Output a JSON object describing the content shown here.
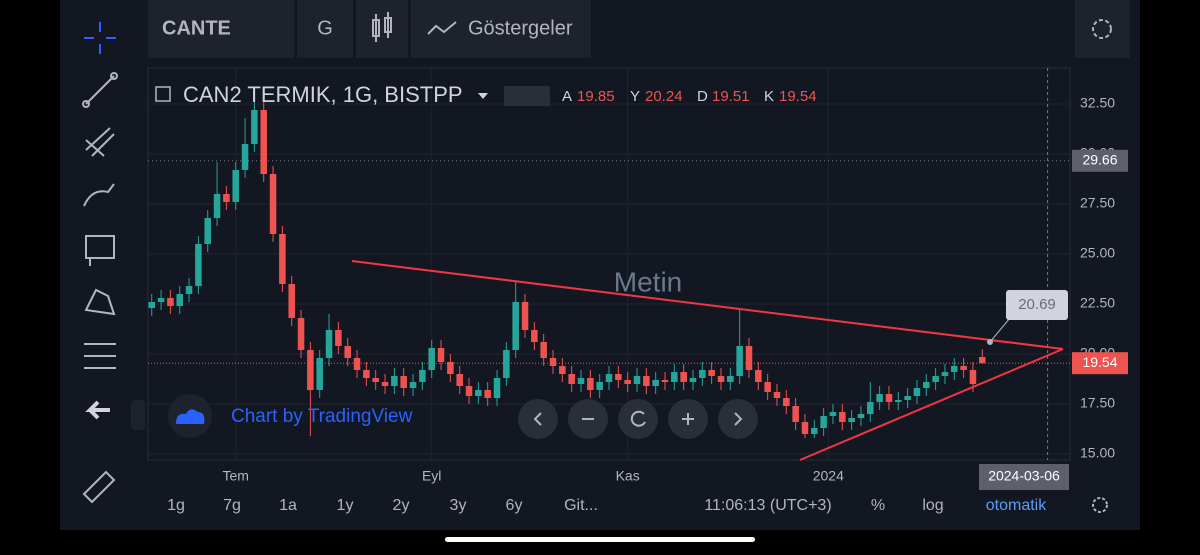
{
  "top_bar": {
    "symbol": "CANTE",
    "interval": "G",
    "indicators": "Göstergeler"
  },
  "chart_data": {
    "type": "candlestick",
    "title": "CAN2 TERMIK, 1G, BISTPP",
    "ohlc_labels": [
      "A",
      "Y",
      "D",
      "K"
    ],
    "open": [
      22.3,
      22.6,
      22.8,
      22.4,
      23.0,
      23.4,
      25.5,
      26.8,
      28.0,
      27.6,
      29.2,
      30.5,
      32.2,
      29.0,
      26.0,
      23.5,
      21.8,
      20.2,
      18.2,
      19.8,
      21.2,
      20.4,
      19.8,
      19.2,
      18.8,
      18.6,
      18.4,
      18.9,
      18.3,
      18.6,
      19.2,
      20.3,
      19.6,
      19.0,
      18.4,
      17.9,
      18.2,
      17.8,
      18.8,
      20.2,
      22.6,
      21.2,
      20.6,
      19.8,
      19.4,
      19.0,
      18.5,
      18.8,
      18.2,
      18.6,
      19.0,
      18.7,
      18.5,
      18.9,
      18.4,
      18.7,
      18.6,
      19.1,
      18.6,
      18.8,
      19.2,
      18.9,
      18.6,
      18.9,
      20.4,
      19.2,
      18.6,
      18.1,
      17.8,
      17.4,
      16.6,
      16.0,
      16.3,
      16.9,
      17.1,
      16.6,
      16.8,
      17.0,
      17.6,
      18.0,
      17.6,
      17.7,
      17.9,
      18.3,
      18.6,
      18.9,
      19.1,
      19.4,
      19.2,
      19.85
    ],
    "high": [
      23.0,
      23.2,
      23.2,
      23.4,
      23.8,
      25.9,
      27.2,
      29.6,
      28.4,
      29.6,
      31.8,
      33.0,
      32.8,
      29.4,
      26.4,
      23.9,
      22.2,
      20.6,
      20.2,
      22.0,
      21.6,
      20.8,
      20.2,
      19.6,
      19.2,
      19.0,
      19.3,
      19.3,
      19.0,
      19.6,
      20.7,
      20.7,
      20.0,
      19.4,
      18.8,
      18.6,
      18.6,
      19.2,
      20.6,
      23.6,
      23.0,
      21.6,
      21.0,
      20.2,
      19.8,
      19.4,
      19.2,
      19.2,
      19.0,
      19.4,
      19.4,
      19.1,
      19.3,
      19.3,
      19.1,
      19.1,
      19.5,
      19.5,
      19.2,
      19.6,
      19.6,
      19.3,
      19.3,
      22.2,
      20.8,
      19.6,
      19.0,
      18.5,
      18.2,
      17.8,
      17.0,
      16.7,
      17.3,
      17.5,
      17.5,
      17.2,
      17.4,
      18.6,
      18.4,
      18.4,
      18.1,
      18.3,
      18.7,
      19.0,
      19.3,
      19.5,
      19.8,
      19.8,
      19.6,
      20.24
    ],
    "low": [
      21.9,
      22.2,
      22.0,
      22.0,
      22.6,
      23.0,
      25.1,
      26.4,
      27.2,
      27.2,
      28.8,
      30.1,
      28.6,
      25.6,
      23.1,
      21.4,
      19.8,
      15.9,
      17.8,
      19.4,
      20.0,
      19.4,
      18.8,
      18.4,
      18.2,
      18.0,
      18.0,
      17.9,
      17.9,
      18.2,
      18.8,
      19.2,
      18.6,
      18.0,
      17.5,
      17.5,
      17.4,
      17.4,
      18.4,
      19.8,
      20.8,
      20.2,
      19.4,
      19.0,
      18.6,
      18.1,
      18.1,
      17.8,
      17.8,
      18.2,
      18.3,
      18.1,
      18.1,
      18.0,
      18.0,
      18.2,
      18.2,
      18.2,
      18.2,
      18.4,
      18.5,
      18.2,
      18.2,
      18.5,
      18.8,
      18.2,
      17.7,
      17.4,
      17.0,
      16.2,
      15.8,
      15.8,
      15.9,
      16.5,
      16.2,
      16.2,
      16.4,
      16.6,
      17.2,
      17.2,
      17.2,
      17.3,
      17.5,
      17.9,
      18.2,
      18.5,
      18.7,
      18.8,
      18.1,
      19.51
    ],
    "close": [
      22.6,
      22.8,
      22.4,
      23.0,
      23.4,
      25.5,
      26.8,
      28.0,
      27.6,
      29.2,
      30.5,
      32.2,
      29.0,
      26.0,
      23.5,
      21.8,
      20.2,
      18.2,
      19.8,
      21.2,
      20.4,
      19.8,
      19.2,
      18.8,
      18.6,
      18.4,
      18.9,
      18.3,
      18.6,
      19.2,
      20.3,
      19.6,
      19.0,
      18.4,
      17.9,
      18.2,
      17.8,
      18.8,
      20.2,
      22.6,
      21.2,
      20.6,
      19.8,
      19.4,
      19.0,
      18.5,
      18.8,
      18.2,
      18.6,
      19.0,
      18.7,
      18.5,
      18.9,
      18.4,
      18.7,
      18.6,
      19.1,
      18.6,
      18.8,
      19.2,
      18.9,
      18.6,
      18.9,
      20.4,
      19.2,
      18.6,
      18.1,
      17.8,
      17.4,
      16.6,
      16.0,
      16.3,
      16.9,
      17.1,
      16.6,
      16.8,
      17.0,
      17.6,
      18.0,
      17.6,
      17.7,
      17.9,
      18.3,
      18.6,
      18.9,
      19.1,
      19.4,
      19.2,
      18.5,
      19.54
    ],
    "up_color": "#26a69a",
    "down_color": "#ef5350",
    "xlim": [
      -0.4,
      98.4
    ],
    "xticks": [
      {
        "value": 9,
        "label": "Tem"
      },
      {
        "value": 30,
        "label": "Eyl"
      },
      {
        "value": 51,
        "label": "Kas"
      },
      {
        "value": 72.5,
        "label": "2024"
      }
    ],
    "ylim": [
      14.7,
      34.3
    ],
    "yticks": [
      {
        "value": 15,
        "label": "15.00"
      },
      {
        "value": 17.5,
        "label": "17.50"
      },
      {
        "value": 20,
        "label": "20.00"
      },
      {
        "value": 22.5,
        "label": "22.50"
      },
      {
        "value": 25,
        "label": "25.00"
      },
      {
        "value": 27.5,
        "label": "27.50"
      },
      {
        "value": 30,
        "label": "30.00"
      },
      {
        "value": 32.5,
        "label": "32.50"
      }
    ],
    "grid": true,
    "annotation": "Metin",
    "callout": "20.69",
    "price_marker": 29.66,
    "cursor": {
      "value": 96,
      "label": "2024-03-06"
    }
  },
  "watermark": "Chart by TradingView",
  "bottom_bar": {
    "ranges": [
      "1g",
      "7g",
      "1a",
      "1y",
      "2y",
      "3y",
      "6y",
      "Git..."
    ],
    "time": "11:06:13 (UTC+3)",
    "percent": "%",
    "log": "log",
    "auto": "otomatik"
  }
}
